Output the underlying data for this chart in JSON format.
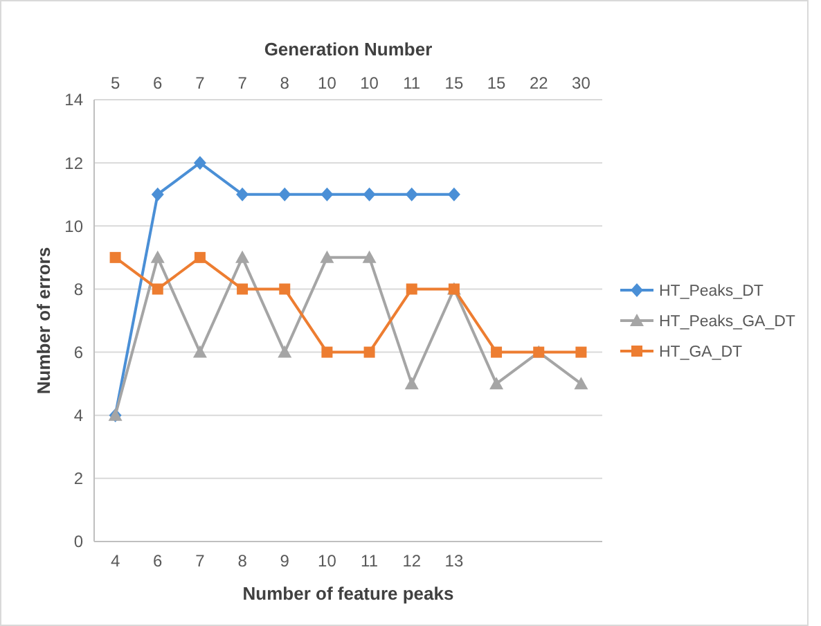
{
  "chart_data": {
    "type": "line",
    "xlabel": "Number of feature peaks",
    "ylabel": "Number of errors",
    "x2label": "Generation Number",
    "categories": [
      "4",
      "6",
      "7",
      "8",
      "9",
      "10",
      "11",
      "12",
      "13",
      null,
      null,
      null
    ],
    "annotations": [
      "5",
      "6",
      "7",
      "7",
      "8",
      "10",
      "10",
      "11",
      "15",
      "15",
      "22",
      "30"
    ],
    "series": [
      {
        "name": "HT_Peaks_DT",
        "color": "#4a8fd6",
        "marker": "diamond",
        "values": [
          4,
          11,
          12,
          11,
          11,
          11,
          11,
          11,
          11,
          null,
          null,
          null
        ]
      },
      {
        "name": "HT_Peaks_GA_DT",
        "color": "#a5a5a5",
        "marker": "triangle",
        "values": [
          4,
          9,
          6,
          9,
          6,
          9,
          9,
          5,
          8,
          5,
          6,
          5
        ]
      },
      {
        "name": "HT_GA_DT",
        "color": "#ed7d31",
        "marker": "square",
        "values": [
          9,
          8,
          9,
          8,
          8,
          6,
          6,
          8,
          8,
          6,
          6,
          6
        ]
      }
    ],
    "ylim": [
      0,
      14
    ],
    "yticks": [
      0,
      2,
      4,
      6,
      8,
      10,
      12,
      14
    ],
    "grid": "y",
    "legend": "right",
    "line_style": "solid"
  }
}
